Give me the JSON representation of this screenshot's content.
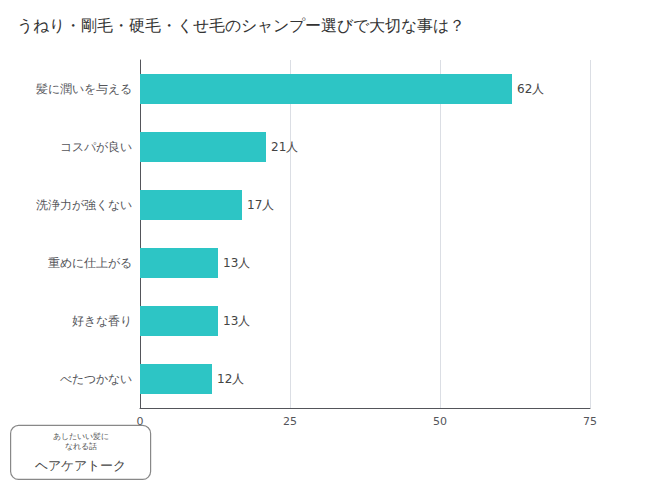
{
  "chart_data": {
    "type": "bar",
    "title": "うねり・剛毛・硬毛・くせ毛のシャンプー選びで大切な事は？",
    "orientation": "horizontal",
    "categories": [
      "べたつかない",
      "好きな香り",
      "重めに仕上がる",
      "洗浄力が強くない",
      "コスパが良い",
      "髪に潤いを与える"
    ],
    "values": [
      12,
      13,
      13,
      17,
      21,
      62
    ],
    "value_labels": [
      "12人",
      "13人",
      "13人",
      "17人",
      "21人",
      "62人"
    ],
    "data_labels": true,
    "color": "#2DC5C5",
    "xlim": [
      0,
      75
    ],
    "xticks": [
      0,
      25,
      50,
      75
    ],
    "grid": true,
    "annotations": [
      {
        "text": "あしたいい髪に\nなれる話"
      },
      {
        "text": "ヘアケアトーク"
      }
    ]
  }
}
